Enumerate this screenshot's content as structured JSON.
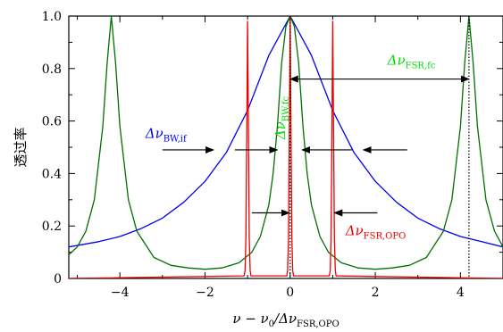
{
  "chart_data": {
    "type": "line",
    "title": "",
    "ylabel": "透过率",
    "xlabel": {
      "main": "ν − ν",
      "sub0": "0",
      "slash": "/Δν",
      "sub": "FSR,OPO"
    },
    "xlim": [
      -5.2,
      5.0
    ],
    "ylim": [
      0,
      1.0
    ],
    "xticks": [
      -4,
      -2,
      0,
      2,
      4
    ],
    "xtick_labels": [
      "−4",
      "−2",
      "0",
      "2",
      "4"
    ],
    "yticks": [
      0,
      0.2,
      0.4,
      0.6,
      0.8,
      1.0
    ],
    "ytick_labels": [
      "0",
      "0.2",
      "0.4",
      "0.6",
      "0.8",
      "1.0"
    ],
    "grid": false,
    "legend": "none",
    "series": [
      {
        "key": "interference_filter",
        "color": "#0000ee",
        "x": [
          -5.2,
          -4.5,
          -4.0,
          -3.5,
          -3.0,
          -2.5,
          -2.0,
          -1.5,
          -1.0,
          -0.5,
          0.0,
          0.5,
          1.0,
          1.5,
          2.0,
          2.5,
          3.0,
          3.5,
          4.0,
          4.5,
          5.0
        ],
        "y": [
          0.12,
          0.14,
          0.16,
          0.19,
          0.23,
          0.29,
          0.37,
          0.48,
          0.64,
          0.85,
          1.0,
          0.85,
          0.64,
          0.48,
          0.37,
          0.29,
          0.23,
          0.19,
          0.16,
          0.14,
          0.12
        ]
      },
      {
        "key": "filter_cavity",
        "color": "#007000",
        "x": [
          -5.2,
          -5.0,
          -4.8,
          -4.6,
          -4.4,
          -4.3,
          -4.2,
          -4.1,
          -4.0,
          -3.8,
          -3.6,
          -3.2,
          -2.8,
          -2.4,
          -2.0,
          -1.6,
          -1.2,
          -0.9,
          -0.7,
          -0.5,
          -0.4,
          -0.3,
          -0.2,
          -0.1,
          0.0,
          0.1,
          0.2,
          0.3,
          0.4,
          0.5,
          0.7,
          0.9,
          1.2,
          1.6,
          2.0,
          2.4,
          2.8,
          3.2,
          3.6,
          3.8,
          4.0,
          4.1,
          4.2,
          4.3,
          4.4,
          4.6,
          4.8,
          5.0
        ],
        "y": [
          0.09,
          0.12,
          0.18,
          0.3,
          0.58,
          0.82,
          1.0,
          0.82,
          0.58,
          0.3,
          0.18,
          0.08,
          0.05,
          0.04,
          0.035,
          0.04,
          0.06,
          0.1,
          0.16,
          0.28,
          0.4,
          0.58,
          0.82,
          0.96,
          1.0,
          0.96,
          0.82,
          0.58,
          0.4,
          0.28,
          0.16,
          0.1,
          0.06,
          0.04,
          0.035,
          0.04,
          0.05,
          0.08,
          0.18,
          0.3,
          0.58,
          0.82,
          1.0,
          0.82,
          0.58,
          0.3,
          0.18,
          0.12
        ]
      },
      {
        "key": "opo",
        "color": "#ee0000",
        "x": [
          -5.2,
          -1.08,
          -1.06,
          -1.04,
          -1.02,
          -1.0,
          -0.98,
          -0.96,
          -0.94,
          -0.92,
          -0.08,
          -0.06,
          -0.04,
          -0.02,
          0.0,
          0.02,
          0.04,
          0.06,
          0.08,
          0.92,
          0.94,
          0.96,
          0.98,
          1.0,
          1.02,
          1.04,
          1.06,
          1.08,
          5.0
        ],
        "y": [
          0.0,
          0.01,
          0.03,
          0.15,
          0.55,
          0.98,
          0.55,
          0.15,
          0.03,
          0.01,
          0.01,
          0.03,
          0.15,
          0.55,
          1.0,
          0.55,
          0.15,
          0.03,
          0.01,
          0.01,
          0.03,
          0.15,
          0.55,
          0.98,
          0.55,
          0.15,
          0.03,
          0.01,
          0.0
        ]
      }
    ],
    "annotations": [
      {
        "key": "bw_if",
        "main": "Δν",
        "sub": "BW,if",
        "color": "#0000ee"
      },
      {
        "key": "bw_fc",
        "main": "Δν",
        "sub": "BW,fc",
        "color": "#00dd00",
        "rotated": true
      },
      {
        "key": "fsr_fc",
        "main": "Δν",
        "sub": "FSR,fc",
        "color": "#00dd00"
      },
      {
        "key": "fsr_opo",
        "main": "Δν",
        "sub": "FSR,OPO",
        "color": "#ee0000"
      }
    ],
    "arrows": [
      {
        "from": [
          -3.0,
          0.49
        ],
        "to": [
          -1.8,
          0.49
        ]
      },
      {
        "from": [
          -1.3,
          0.49
        ],
        "to": [
          -0.3,
          0.49
        ]
      },
      {
        "from": [
          1.45,
          0.49
        ],
        "to": [
          0.28,
          0.49
        ]
      },
      {
        "from": [
          2.75,
          0.49
        ],
        "to": [
          1.72,
          0.49
        ]
      },
      {
        "from": [
          -0.9,
          0.25
        ],
        "to": [
          -0.02,
          0.25
        ]
      },
      {
        "from": [
          2.05,
          0.25
        ],
        "to": [
          1.04,
          0.25
        ]
      },
      {
        "from": [
          0.0,
          0.76
        ],
        "to": [
          4.2,
          0.76
        ],
        "double": true
      }
    ],
    "vlines": [
      {
        "x": 0.0,
        "style": "dotted"
      },
      {
        "x": 4.2,
        "style": "dotted"
      }
    ]
  }
}
